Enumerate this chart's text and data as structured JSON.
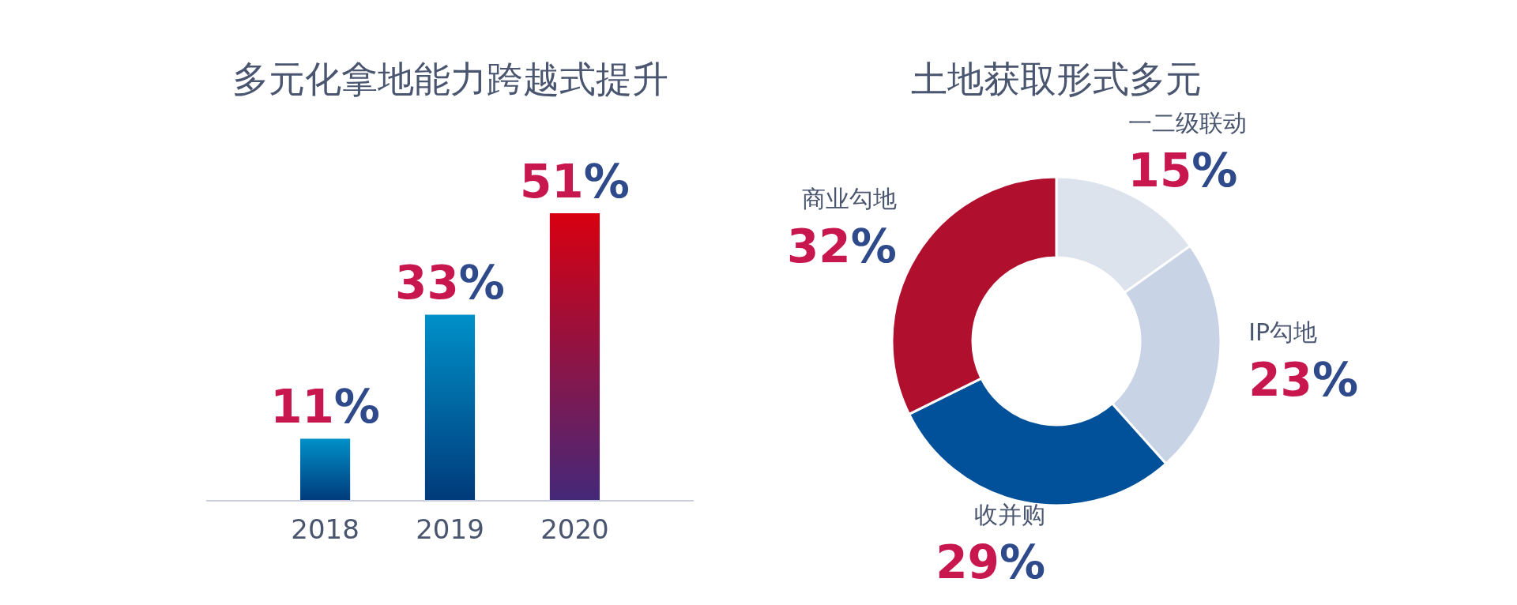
{
  "chart_data": [
    {
      "type": "bar",
      "title": "多元化拿地能力跨越式提升",
      "categories": [
        "2018",
        "2019",
        "2020"
      ],
      "values": [
        11,
        33,
        51
      ],
      "value_labels": [
        "11%",
        "33%",
        "51%"
      ],
      "colors": [
        "#0090c8",
        "#0090c8",
        "#d80010"
      ]
    },
    {
      "type": "donut",
      "title": "土地获取形式多元",
      "categories": [
        "一二级联动",
        "IP勾地",
        "收并购",
        "商业勾地"
      ],
      "values": [
        15,
        23,
        29,
        32
      ],
      "value_labels": [
        "15%",
        "23%",
        "29%",
        "32%"
      ],
      "colors": [
        "#dde3ec",
        "#c9d3e6",
        "#00509a",
        "#b0102e"
      ]
    }
  ]
}
